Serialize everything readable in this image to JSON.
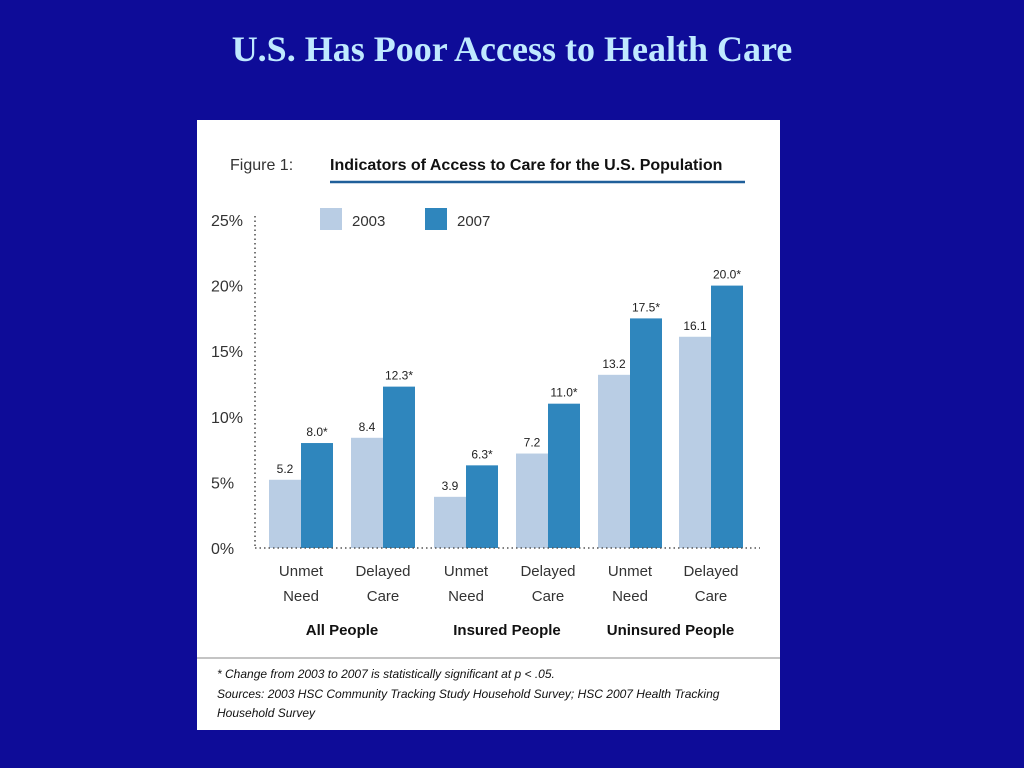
{
  "slide": {
    "title": "U.S. Has Poor Access to Health Care"
  },
  "figure": {
    "number": "Figure 1:",
    "title": "Indicators of Access to Care for the U.S. Population",
    "footnote": "* Change from 2003 to 2007 is statistically significant at p < .05.",
    "sources_line1": "Sources: 2003 HSC Community Tracking Study Household Survey; HSC 2007 Health Tracking",
    "sources_line2": "Household Survey",
    "accent_color": "#1f5f9a"
  },
  "chart_data": {
    "type": "bar",
    "title": "Indicators of Access to Care for the U.S. Population",
    "xlabel": "",
    "ylabel": "",
    "ylim": [
      0,
      25
    ],
    "yticks": [
      "0%",
      "5%",
      "10%",
      "15%",
      "20%",
      "25%"
    ],
    "ytick_values": [
      0,
      5,
      10,
      15,
      20,
      25
    ],
    "groups": [
      {
        "name": "All People",
        "categories": [
          "Unmet\nNeed",
          "Delayed\nCare"
        ]
      },
      {
        "name": "Insured People",
        "categories": [
          "Unmet\nNeed",
          "Delayed\nCare"
        ]
      },
      {
        "name": "Uninsured People",
        "categories": [
          "Unmet\nNeed",
          "Delayed\nCare"
        ]
      }
    ],
    "category_lines": [
      [
        "Unmet",
        "Need"
      ],
      [
        "Delayed",
        "Care"
      ],
      [
        "Unmet",
        "Need"
      ],
      [
        "Delayed",
        "Care"
      ],
      [
        "Unmet",
        "Need"
      ],
      [
        "Delayed",
        "Care"
      ]
    ],
    "series": [
      {
        "name": "2003",
        "color": "#b9cde4",
        "values": [
          5.2,
          8.4,
          3.9,
          7.2,
          13.2,
          16.1
        ],
        "labels": [
          "5.2",
          "8.4",
          "3.9",
          "7.2",
          "13.2",
          "16.1"
        ]
      },
      {
        "name": "2007",
        "color": "#2f86bd",
        "values": [
          8.0,
          12.3,
          6.3,
          11.0,
          17.5,
          20.0
        ],
        "labels": [
          "8.0*",
          "12.3*",
          "6.3*",
          "11.0*",
          "17.5*",
          "20.0*"
        ]
      }
    ],
    "legend_position": "top-left",
    "grid": false
  }
}
